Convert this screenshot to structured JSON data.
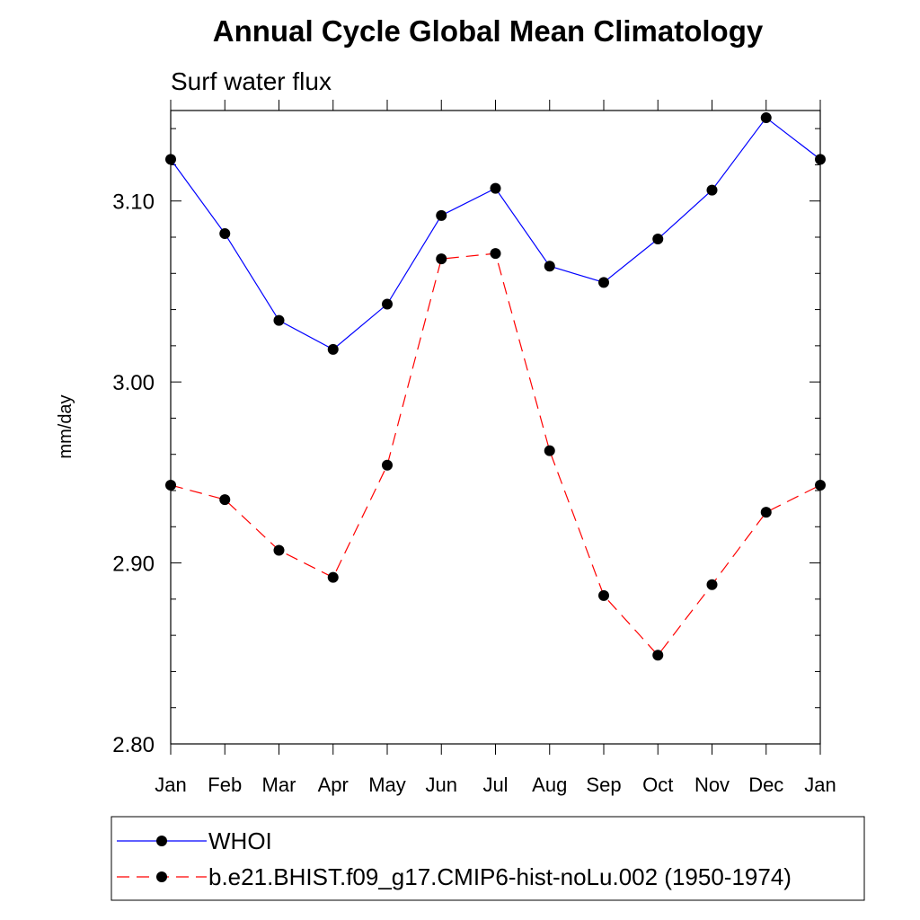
{
  "chart_data": {
    "type": "line",
    "title": "Annual Cycle Global Mean Climatology",
    "subtitle": "Surf water flux",
    "xlabel": "",
    "ylabel": "mm/day",
    "categories": [
      "Jan",
      "Feb",
      "Mar",
      "Apr",
      "May",
      "Jun",
      "Jul",
      "Aug",
      "Sep",
      "Oct",
      "Nov",
      "Dec",
      "Jan"
    ],
    "ylim": [
      2.8,
      3.15
    ],
    "yticks": [
      2.8,
      2.9,
      3.0,
      3.1
    ],
    "ytick_labels": [
      "2.80",
      "2.90",
      "3.00",
      "3.10"
    ],
    "yminor_step": 0.02,
    "series": [
      {
        "name": "WHOI",
        "color": "#0000ff",
        "dash": "solid",
        "marker": "circle",
        "values": [
          3.123,
          3.082,
          3.034,
          3.018,
          3.043,
          3.092,
          3.107,
          3.064,
          3.055,
          3.079,
          3.106,
          3.146,
          3.123
        ]
      },
      {
        "name": "b.e21.BHIST.f09_g17.CMIP6-hist-noLu.002 (1950-1974)",
        "color": "#ff0000",
        "dash": "dashed",
        "marker": "circle",
        "values": [
          2.943,
          2.935,
          2.907,
          2.892,
          2.954,
          3.068,
          3.071,
          2.962,
          2.882,
          2.849,
          2.888,
          2.928,
          2.943
        ]
      }
    ],
    "legend_position": "bottom"
  }
}
